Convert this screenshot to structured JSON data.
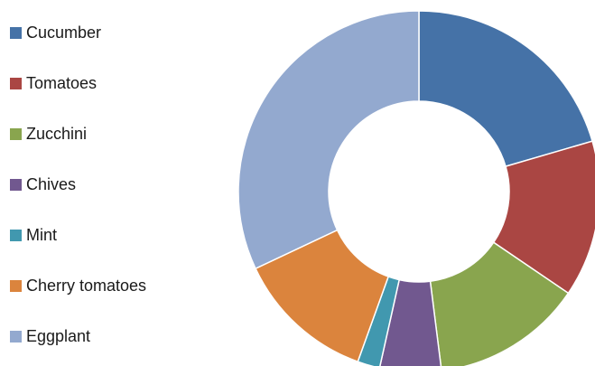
{
  "chart_data": {
    "type": "pie",
    "variant": "donut",
    "title": "",
    "legend_position": "left",
    "categories": [
      "Cucumber",
      "Tomatoes",
      "Zucchini",
      "Chives",
      "Mint",
      "Cherry tomatoes",
      "Eggplant"
    ],
    "values": [
      20.5,
      14,
      13.5,
      5.5,
      2,
      12.5,
      32
    ],
    "colors": [
      "#4572A7",
      "#AA4643",
      "#89A54E",
      "#71588F",
      "#4198AF",
      "#DB843D",
      "#93A9CF"
    ]
  }
}
